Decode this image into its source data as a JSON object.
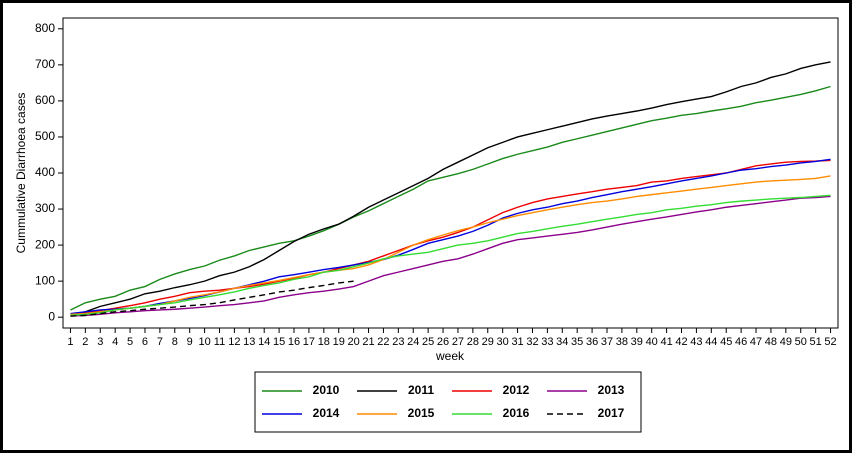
{
  "chart_data": {
    "type": "line",
    "y_label": "Cummulative Diarrhoea cases",
    "x_label": "week",
    "x": [
      1,
      2,
      3,
      4,
      5,
      6,
      7,
      8,
      9,
      10,
      11,
      12,
      13,
      14,
      15,
      16,
      17,
      18,
      19,
      20,
      21,
      22,
      23,
      24,
      25,
      26,
      27,
      28,
      29,
      30,
      31,
      32,
      33,
      34,
      35,
      36,
      37,
      38,
      39,
      40,
      41,
      42,
      43,
      44,
      45,
      46,
      47,
      48,
      49,
      50,
      51,
      52
    ],
    "xlim": [
      0.5,
      52.5
    ],
    "xticks": [
      1,
      2,
      3,
      4,
      5,
      6,
      7,
      8,
      9,
      10,
      11,
      12,
      13,
      14,
      15,
      16,
      17,
      18,
      19,
      20,
      21,
      22,
      23,
      24,
      25,
      26,
      27,
      28,
      29,
      30,
      31,
      32,
      33,
      34,
      35,
      36,
      37,
      38,
      39,
      40,
      41,
      42,
      43,
      44,
      45,
      46,
      47,
      48,
      49,
      50,
      51,
      52
    ],
    "ylim": [
      -30,
      830
    ],
    "yticks": [
      0,
      100,
      200,
      300,
      400,
      500,
      600,
      700,
      800
    ],
    "series": [
      {
        "name": "2010",
        "color": "#1a8a1a",
        "values": [
          20,
          40,
          50,
          58,
          75,
          85,
          105,
          120,
          132,
          142,
          158,
          170,
          185,
          195,
          205,
          212,
          225,
          240,
          258,
          278,
          295,
          315,
          335,
          355,
          378,
          388,
          398,
          410,
          425,
          440,
          452,
          462,
          472,
          485,
          495,
          505,
          515,
          525,
          535,
          545,
          552,
          560,
          565,
          572,
          578,
          585,
          595,
          602,
          610,
          618,
          628,
          640
        ]
      },
      {
        "name": "2011",
        "color": "#000000",
        "values": [
          5,
          15,
          30,
          40,
          50,
          65,
          72,
          82,
          90,
          100,
          115,
          125,
          140,
          160,
          185,
          210,
          230,
          245,
          258,
          280,
          305,
          325,
          345,
          365,
          385,
          410,
          430,
          450,
          470,
          485,
          500,
          510,
          520,
          530,
          540,
          550,
          558,
          565,
          572,
          580,
          590,
          598,
          605,
          612,
          625,
          640,
          650,
          665,
          675,
          690,
          700,
          708
        ]
      },
      {
        "name": "2012",
        "color": "#ee0000",
        "values": [
          8,
          12,
          18,
          25,
          32,
          40,
          50,
          58,
          68,
          72,
          75,
          80,
          85,
          92,
          100,
          108,
          118,
          125,
          135,
          145,
          155,
          170,
          185,
          200,
          212,
          222,
          235,
          250,
          270,
          290,
          305,
          318,
          328,
          335,
          342,
          348,
          355,
          360,
          365,
          375,
          378,
          385,
          390,
          395,
          400,
          410,
          420,
          425,
          430,
          432,
          433,
          435
        ]
      },
      {
        "name": "2013",
        "color": "#8b008b",
        "values": [
          3,
          5,
          8,
          12,
          15,
          18,
          20,
          22,
          25,
          28,
          32,
          35,
          40,
          45,
          55,
          62,
          68,
          72,
          78,
          85,
          100,
          115,
          125,
          135,
          145,
          155,
          162,
          175,
          190,
          205,
          215,
          220,
          225,
          230,
          235,
          242,
          250,
          258,
          265,
          272,
          278,
          285,
          292,
          298,
          305,
          310,
          315,
          320,
          325,
          330,
          332,
          335
        ]
      },
      {
        "name": "2014",
        "color": "#0000dd",
        "values": [
          10,
          15,
          20,
          22,
          25,
          30,
          38,
          45,
          52,
          60,
          70,
          80,
          90,
          100,
          112,
          118,
          125,
          132,
          138,
          145,
          152,
          160,
          172,
          188,
          205,
          215,
          225,
          238,
          255,
          275,
          288,
          298,
          305,
          315,
          322,
          332,
          340,
          348,
          355,
          362,
          370,
          378,
          385,
          392,
          400,
          408,
          412,
          418,
          422,
          428,
          432,
          438
        ]
      },
      {
        "name": "2015",
        "color": "#ff8c00",
        "values": [
          8,
          10,
          15,
          20,
          25,
          30,
          35,
          45,
          55,
          62,
          70,
          80,
          88,
          95,
          102,
          110,
          118,
          125,
          130,
          135,
          145,
          160,
          180,
          200,
          215,
          228,
          240,
          250,
          262,
          272,
          282,
          290,
          298,
          305,
          312,
          318,
          322,
          328,
          335,
          340,
          345,
          350,
          355,
          360,
          365,
          370,
          375,
          378,
          380,
          382,
          385,
          392
        ]
      },
      {
        "name": "2016",
        "color": "#33dd33",
        "values": [
          5,
          8,
          12,
          20,
          25,
          30,
          35,
          40,
          48,
          55,
          62,
          70,
          80,
          88,
          95,
          105,
          112,
          125,
          130,
          140,
          150,
          162,
          170,
          175,
          180,
          190,
          200,
          205,
          212,
          222,
          232,
          238,
          245,
          252,
          258,
          265,
          272,
          278,
          285,
          290,
          298,
          302,
          308,
          312,
          318,
          322,
          325,
          328,
          330,
          332,
          335,
          338
        ]
      },
      {
        "name": "2017",
        "color": "#000000",
        "dash": true,
        "values": [
          3,
          5,
          10,
          15,
          18,
          22,
          25,
          28,
          32,
          35,
          40,
          48,
          55,
          62,
          70,
          75,
          82,
          88,
          95,
          100,
          null,
          null,
          null,
          null,
          null,
          null,
          null,
          null,
          null,
          null,
          null,
          null,
          null,
          null,
          null,
          null,
          null,
          null,
          null,
          null,
          null,
          null,
          null,
          null,
          null,
          null,
          null,
          null,
          null,
          null,
          null,
          null
        ]
      }
    ]
  }
}
